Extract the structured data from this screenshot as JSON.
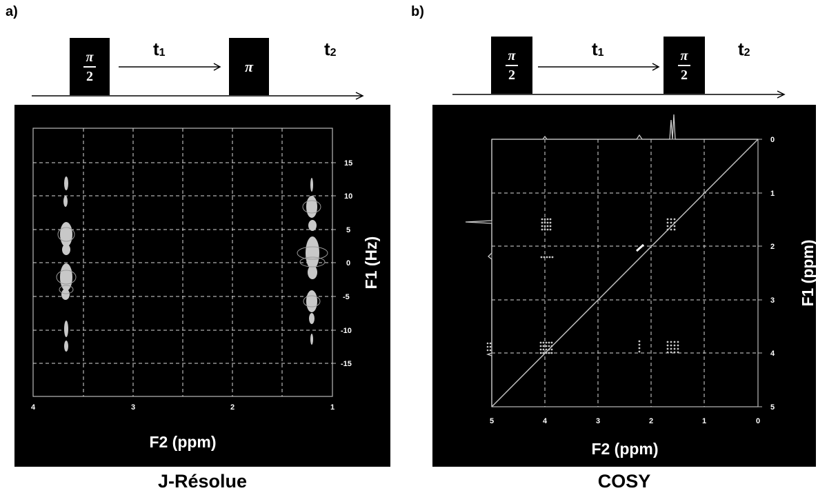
{
  "panel_a": {
    "letter": "a)",
    "pulse1": {
      "num": "π",
      "den": "2"
    },
    "t1_label": "t",
    "t1_sub": "1",
    "pulse2": {
      "text": "π"
    },
    "t2_label": "t",
    "t2_sub": "2",
    "xlabel": "F2 (ppm)",
    "ylabel": "F1 (Hz)",
    "x_ticks": [
      "4",
      "3",
      "2",
      "1"
    ],
    "y_ticks": [
      "15",
      "10",
      "5",
      "0",
      "-5",
      "-10",
      "-15"
    ],
    "caption": "J-Résolue"
  },
  "panel_b": {
    "letter": "b)",
    "pulse1": {
      "num": "π",
      "den": "2"
    },
    "t1_label": "t",
    "t1_sub": "1",
    "pulse2": {
      "num": "π",
      "den": "2"
    },
    "t2_label": "t",
    "t2_sub": "2",
    "xlabel": "F2 (ppm)",
    "ylabel": "F1 (ppm)",
    "x_ticks": [
      "5",
      "4",
      "3",
      "2",
      "1",
      "0"
    ],
    "y_ticks": [
      "0",
      "1",
      "2",
      "3",
      "4",
      "5"
    ],
    "caption": "COSY"
  },
  "colors": {
    "spectrum_bg": "#000000",
    "signal": "#cfcfcf",
    "grid": "#e0e0e0"
  }
}
